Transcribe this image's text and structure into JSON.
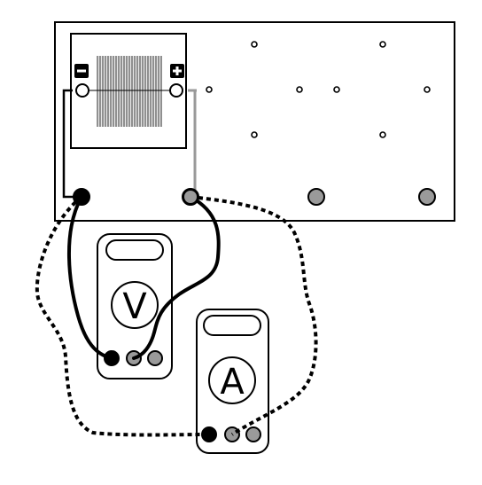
{
  "colors": {
    "stroke": "#000000",
    "background": "#ffffff",
    "terminal_gray": "#9a9a9a",
    "wire_gray": "#999999",
    "cell_stripes": "#7a7a7a"
  },
  "solar_panel": {
    "negative_symbol": "minus-icon",
    "positive_symbol": "plus-icon"
  },
  "voltmeter": {
    "symbol": "V"
  },
  "ammeter": {
    "symbol": "A"
  }
}
